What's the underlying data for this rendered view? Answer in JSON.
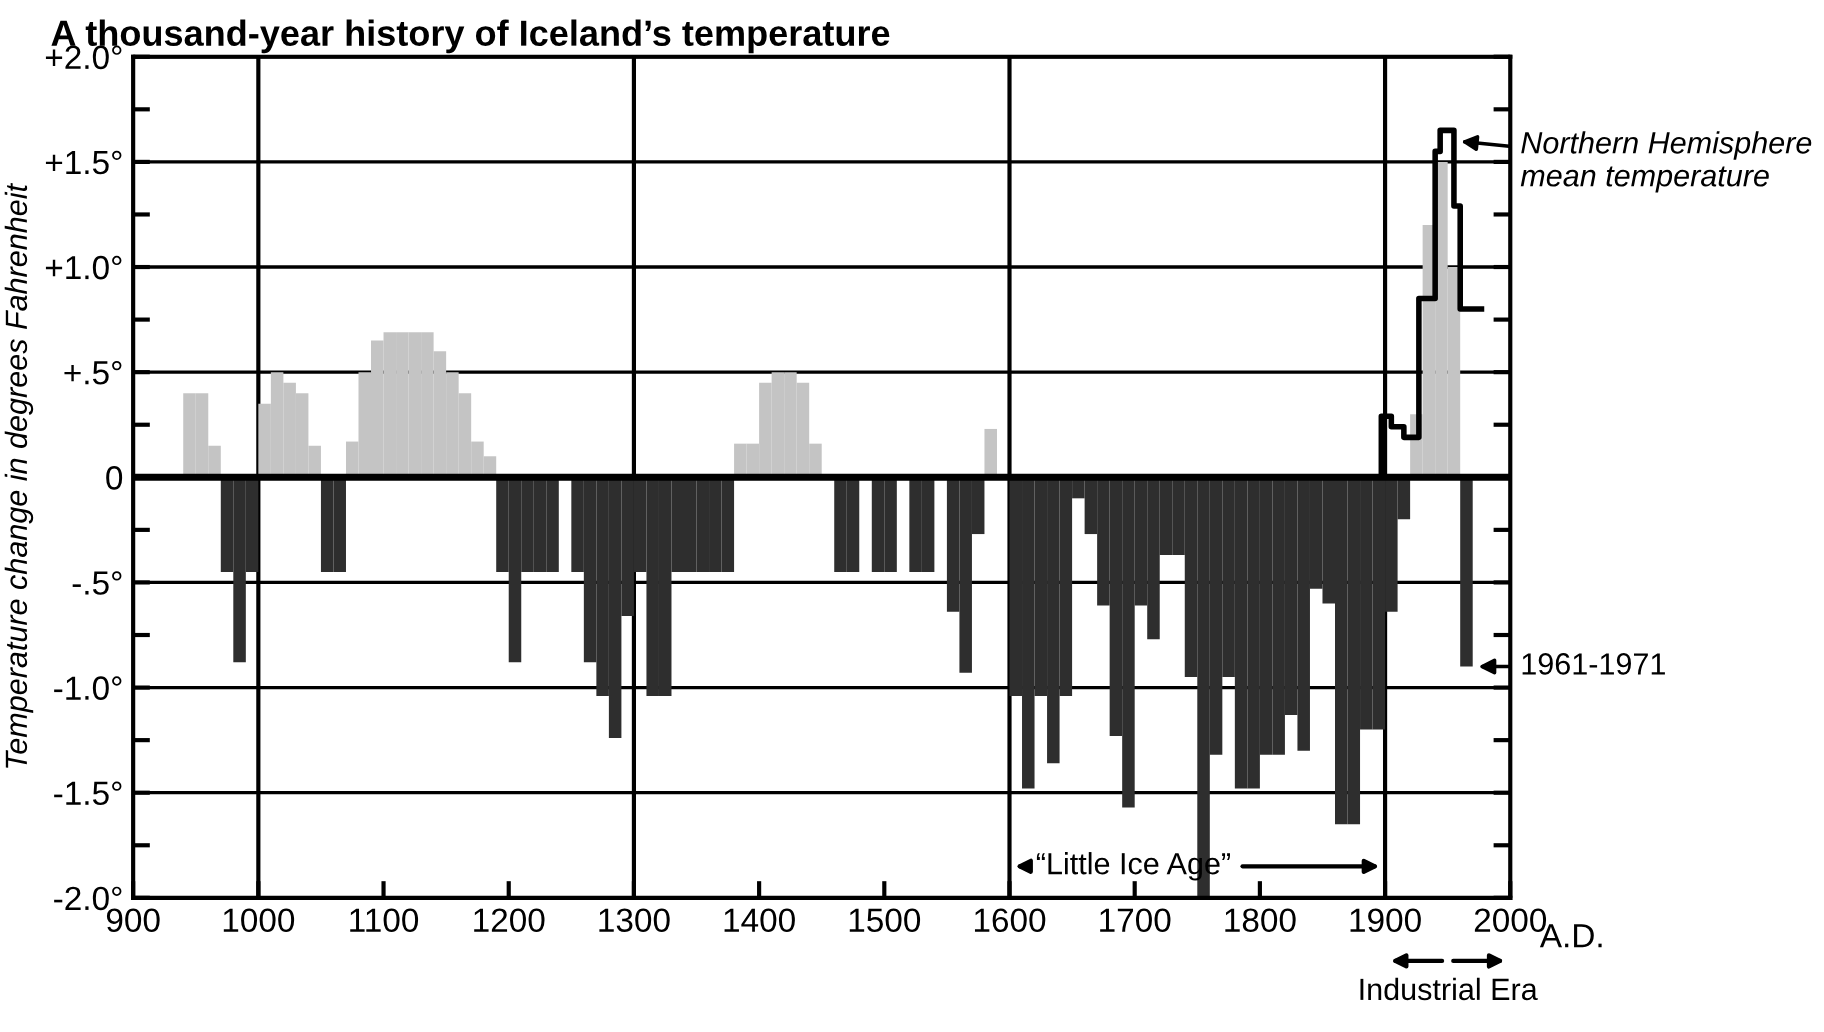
{
  "chart_data": {
    "type": "bar",
    "title": "A thousand-year history of Iceland’s temperature",
    "ylabel": "Temperature change in degrees Fahrenheit",
    "xlabel": "A.D.",
    "series": [
      {
        "color": "#c4c4c4",
        "x": [
          940,
          950,
          960,
          1000,
          1010,
          1020,
          1030,
          1040,
          1070,
          1080,
          1090,
          1100,
          1110,
          1120,
          1130,
          1140,
          1150,
          1160,
          1170,
          1180,
          1380,
          1390,
          1400,
          1410,
          1420,
          1430,
          1440,
          1580,
          1920,
          1930,
          1940,
          1950
        ],
        "values": [
          0.4,
          0.4,
          0.15,
          0.35,
          0.5,
          0.45,
          0.4,
          0.15,
          0.17,
          0.5,
          0.65,
          0.69,
          0.69,
          0.69,
          0.69,
          0.6,
          0.5,
          0.4,
          0.17,
          0.1,
          0.16,
          0.16,
          0.45,
          0.5,
          0.5,
          0.45,
          0.16,
          0.23,
          0.3,
          1.2,
          1.5,
          1.0
        ]
      },
      {
        "color": "#2e2e2e",
        "x": [
          970,
          980,
          990,
          1050,
          1060,
          1190,
          1200,
          1210,
          1220,
          1230,
          1250,
          1260,
          1270,
          1280,
          1290,
          1300,
          1310,
          1320,
          1330,
          1340,
          1350,
          1360,
          1370,
          1460,
          1470,
          1490,
          1500,
          1520,
          1530,
          1550,
          1560,
          1570,
          1600,
          1610,
          1620,
          1630,
          1640,
          1650,
          1660,
          1670,
          1680,
          1690,
          1700,
          1710,
          1720,
          1730,
          1740,
          1750,
          1760,
          1770,
          1780,
          1790,
          1800,
          1810,
          1820,
          1830,
          1840,
          1850,
          1860,
          1870,
          1880,
          1890,
          1900,
          1910,
          1960
        ],
        "values": [
          -0.45,
          -0.88,
          -0.45,
          -0.45,
          -0.45,
          -0.45,
          -0.88,
          -0.45,
          -0.45,
          -0.45,
          -0.45,
          -0.88,
          -1.04,
          -1.24,
          -0.66,
          -0.45,
          -1.04,
          -1.04,
          -0.45,
          -0.45,
          -0.45,
          -0.45,
          -0.45,
          -0.45,
          -0.45,
          -0.45,
          -0.45,
          -0.45,
          -0.45,
          -0.64,
          -0.93,
          -0.27,
          -1.04,
          -1.48,
          -1.04,
          -1.36,
          -1.04,
          -0.1,
          -0.27,
          -0.61,
          -1.23,
          -1.57,
          -0.61,
          -0.77,
          -0.37,
          -0.37,
          -0.95,
          -2.0,
          -1.32,
          -0.95,
          -1.48,
          -1.48,
          -1.32,
          -1.32,
          -1.13,
          -1.3,
          -0.53,
          -0.6,
          -1.65,
          -1.65,
          -1.2,
          -1.2,
          -0.64,
          -0.2,
          -0.9
        ]
      },
      {
        "type": "step",
        "color": "#000000",
        "x": [
          1895,
          1897,
          1905,
          1915,
          1927,
          1940,
          1944,
          1955,
          1960,
          1977
        ],
        "values": [
          0,
          0.29,
          0.24,
          0.19,
          0.85,
          1.55,
          1.65,
          1.29,
          0.8,
          0.8
        ]
      }
    ],
    "xlim": [
      900,
      2000
    ],
    "xticks": [
      900,
      1000,
      1100,
      1200,
      1300,
      1400,
      1500,
      1600,
      1700,
      1800,
      1900,
      2000
    ],
    "ylim": [
      -2.0,
      2.0
    ],
    "yticks": [
      {
        "value": 2.0,
        "label": "+2.0°"
      },
      {
        "value": 1.75,
        "label": null
      },
      {
        "value": 1.5,
        "label": "+1.5°"
      },
      {
        "value": 1.25,
        "label": null
      },
      {
        "value": 1.0,
        "label": "+1.0°"
      },
      {
        "value": 0.75,
        "label": null
      },
      {
        "value": 0.5,
        "label": "+.5°"
      },
      {
        "value": 0.25,
        "label": null
      },
      {
        "value": 0,
        "label": "0"
      },
      {
        "value": -0.25,
        "label": null
      },
      {
        "value": -0.5,
        "label": "-.5°"
      },
      {
        "value": -0.75,
        "label": null
      },
      {
        "value": -1.0,
        "label": "-1.0°"
      },
      {
        "value": -1.25,
        "label": null
      },
      {
        "value": -1.5,
        "label": "-1.5°"
      },
      {
        "value": -1.75,
        "label": null
      },
      {
        "value": -2.0,
        "label": "-2.0°"
      }
    ],
    "grid": "y",
    "ref_lines": [
      {
        "axis": "x",
        "value": 1000,
        "color": "#000000"
      },
      {
        "axis": "x",
        "value": 1300,
        "color": "#000000"
      },
      {
        "axis": "x",
        "value": 1600,
        "color": "#000000"
      },
      {
        "axis": "x",
        "value": 1900,
        "color": "#000000"
      }
    ],
    "annotations": [
      {
        "text": "Northern Hemisphere\nmean temperature",
        "x": 1956,
        "y": 1.6
      },
      {
        "text": "1961-1971",
        "x": 1970,
        "y": -0.9
      },
      "“Little Ice Age”",
      "Industrial Era"
    ]
  }
}
